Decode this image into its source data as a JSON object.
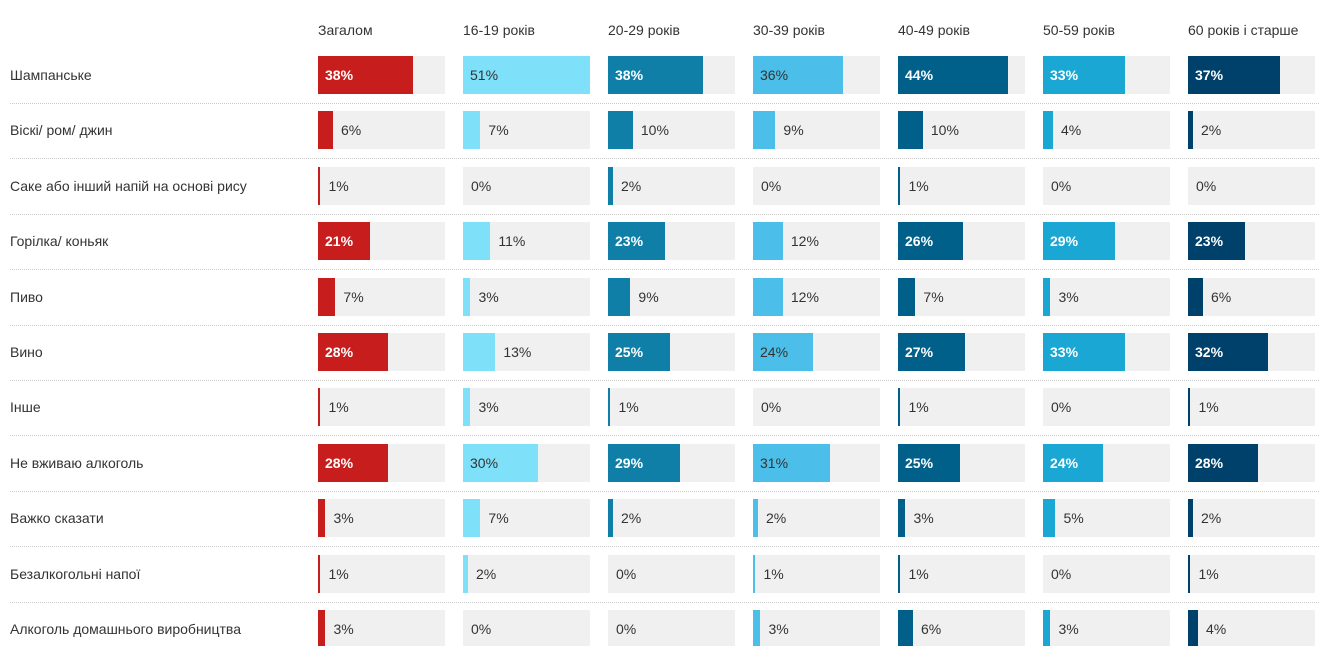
{
  "chart_data": {
    "type": "bar",
    "categories": [
      "Шампанське",
      "Віскі/ ром/ джин",
      "Саке або інший напій на основі рису",
      "Горілка/ коньяк",
      "Пиво",
      "Вино",
      "Інше",
      "Не вживаю алкоголь",
      "Важко сказати",
      "Безалкогольні напої",
      "Алкоголь домашнього виробництва"
    ],
    "xlim": [
      0,
      51
    ],
    "series": [
      {
        "name": "Загалом",
        "color": "#c71e1d",
        "values": [
          38,
          6,
          1,
          21,
          7,
          28,
          1,
          28,
          3,
          1,
          3
        ],
        "value_labels": [
          "38%",
          "6%",
          "1%",
          "21%",
          "7%",
          "28%",
          "1%",
          "28%",
          "3%",
          "1%",
          "3%"
        ]
      },
      {
        "name": "16-19 років",
        "color": "#7ee0f9",
        "values": [
          51,
          7,
          0,
          11,
          3,
          13,
          3,
          30,
          7,
          2,
          0
        ],
        "value_labels": [
          "51%",
          "7%",
          "0%",
          "11%",
          "3%",
          "13%",
          "3%",
          "30%",
          "7%",
          "2%",
          "0%"
        ]
      },
      {
        "name": "20-29 років",
        "color": "#0f7fa8",
        "values": [
          38,
          10,
          2,
          23,
          9,
          25,
          1,
          29,
          2,
          0,
          0
        ],
        "value_labels": [
          "38%",
          "10%",
          "2%",
          "23%",
          "9%",
          "25%",
          "1%",
          "29%",
          "2%",
          "0%",
          "0%"
        ]
      },
      {
        "name": "30-39 років",
        "color": "#4bbfe9",
        "values": [
          36,
          9,
          0,
          12,
          12,
          24,
          0,
          31,
          2,
          1,
          3
        ],
        "value_labels": [
          "36%",
          "9%",
          "0%",
          "12%",
          "12%",
          "24%",
          "0%",
          "31%",
          "2%",
          "1%",
          "3%"
        ]
      },
      {
        "name": "40-49 років",
        "color": "#00608a",
        "values": [
          44,
          10,
          1,
          26,
          7,
          27,
          1,
          25,
          3,
          1,
          6
        ],
        "value_labels": [
          "44%",
          "10%",
          "1%",
          "26%",
          "7%",
          "27%",
          "1%",
          "25%",
          "3%",
          "1%",
          "6%"
        ]
      },
      {
        "name": "50-59 років",
        "color": "#1aa7d4",
        "values": [
          33,
          4,
          0,
          29,
          3,
          33,
          0,
          24,
          5,
          0,
          3
        ],
        "value_labels": [
          "33%",
          "4%",
          "0%",
          "29%",
          "3%",
          "33%",
          "0%",
          "24%",
          "5%",
          "0%",
          "3%"
        ]
      },
      {
        "name": "60 років і старше",
        "color": "#00416b",
        "values": [
          37,
          2,
          0,
          23,
          6,
          32,
          1,
          28,
          2,
          1,
          4
        ],
        "value_labels": [
          "37%",
          "2%",
          "0%",
          "23%",
          "6%",
          "32%",
          "1%",
          "28%",
          "2%",
          "1%",
          "4%"
        ]
      }
    ]
  }
}
